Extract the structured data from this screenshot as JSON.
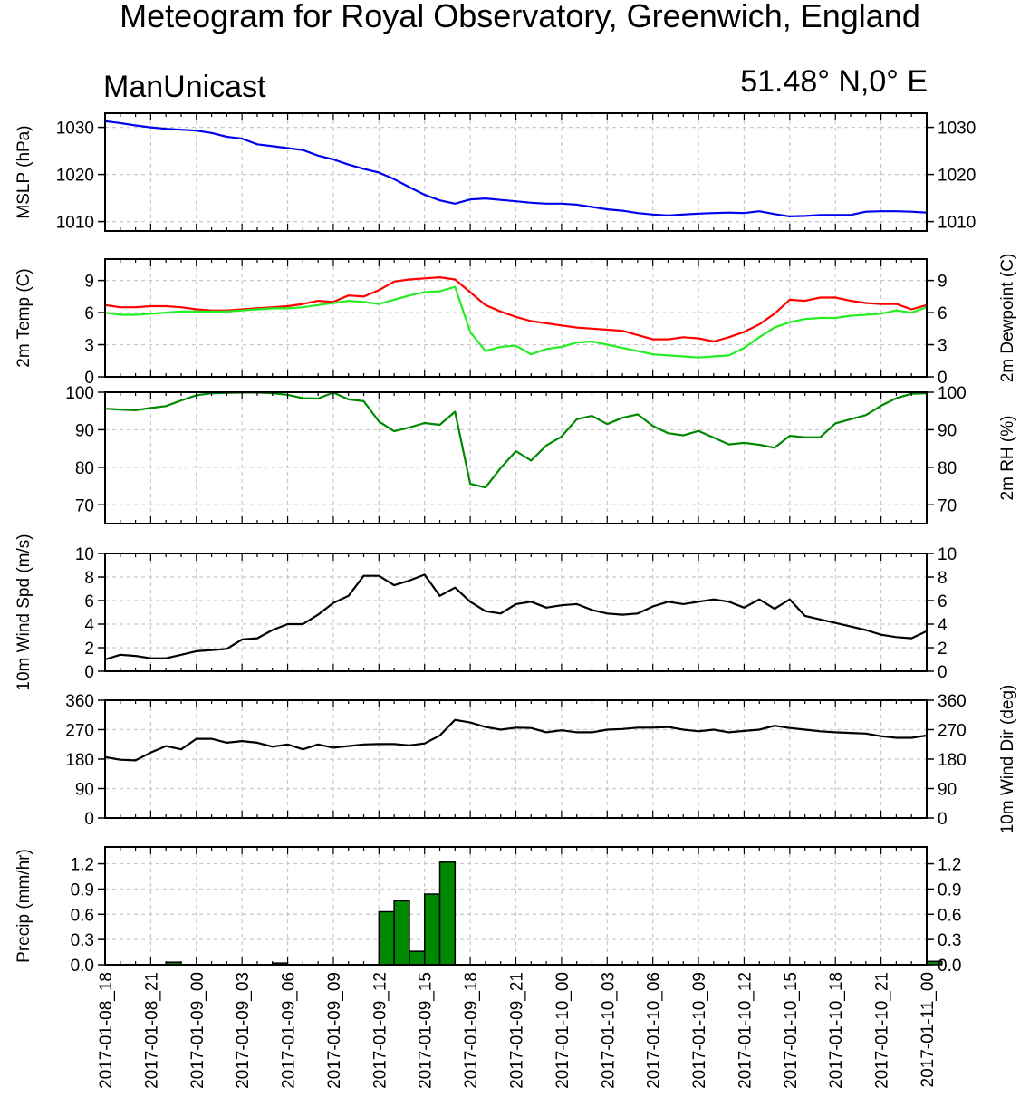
{
  "header": {
    "title": "Meteogram for Royal Observatory, Greenwich, England",
    "model": "ManUnicast",
    "location": "51.48° N,0° E"
  },
  "x_labels": [
    "2017-01-08_18",
    "2017-01-08_21",
    "2017-01-09_00",
    "2017-01-09_03",
    "2017-01-09_06",
    "2017-01-09_09",
    "2017-01-09_12",
    "2017-01-09_15",
    "2017-01-09_18",
    "2017-01-09_21",
    "2017-01-10_00",
    "2017-01-10_03",
    "2017-01-10_06",
    "2017-01-10_09",
    "2017-01-10_12",
    "2017-01-10_15",
    "2017-01-10_18",
    "2017-01-10_21",
    "2017-01-11_00"
  ],
  "chart_data": [
    {
      "type": "line",
      "panel": "mslp",
      "ylabel_left": "MSLP (hPa)",
      "ylim": [
        1008,
        1033
      ],
      "yticks": [
        1010,
        1020,
        1030
      ],
      "series": [
        {
          "color": "#0000ee",
          "x": [
            0,
            1,
            2,
            3,
            4,
            5,
            6,
            7,
            8,
            9,
            10,
            11,
            12,
            13,
            14,
            15,
            16,
            17,
            18,
            19,
            20,
            21,
            22,
            23,
            24,
            25,
            26,
            27,
            28,
            29,
            30,
            31,
            32,
            33,
            34,
            35,
            36,
            37,
            38,
            39,
            40,
            41,
            42,
            43,
            44,
            45,
            46,
            47,
            48,
            49,
            50,
            51,
            52,
            53,
            54
          ],
          "values": [
            1031.3,
            1030.9,
            1030.4,
            1030.0,
            1029.7,
            1029.5,
            1029.3,
            1028.8,
            1028.0,
            1027.6,
            1026.4,
            1026.0,
            1025.6,
            1025.2,
            1024.0,
            1023.2,
            1022.1,
            1021.2,
            1020.4,
            1019.0,
            1017.3,
            1015.7,
            1014.5,
            1013.8,
            1014.7,
            1014.9,
            1014.6,
            1014.3,
            1014.0,
            1013.8,
            1013.8,
            1013.6,
            1013.1,
            1012.6,
            1012.3,
            1011.8,
            1011.5,
            1011.3,
            1011.5,
            1011.7,
            1011.8,
            1011.9,
            1011.8,
            1012.2,
            1011.6,
            1011.1,
            1011.2,
            1011.4,
            1011.4,
            1011.4,
            1012.1,
            1012.2,
            1012.2,
            1012.1,
            1011.9
          ]
        }
      ]
    },
    {
      "type": "line",
      "panel": "temperature",
      "ylabel_left": "2m Temp (C)",
      "ylabel_right": "2m Dewpoint (C)",
      "ylim": [
        0,
        11
      ],
      "yticks": [
        0,
        3,
        6,
        9
      ],
      "series": [
        {
          "color": "#ff0000",
          "x": [
            0,
            1,
            2,
            3,
            4,
            5,
            6,
            7,
            8,
            9,
            10,
            11,
            12,
            13,
            14,
            15,
            16,
            17,
            18,
            19,
            20,
            21,
            22,
            23,
            24,
            25,
            26,
            27,
            28,
            29,
            30,
            31,
            32,
            33,
            34,
            35,
            36,
            37,
            38,
            39,
            40,
            41,
            42,
            43,
            44,
            45,
            46,
            47,
            48,
            49,
            50,
            51,
            52,
            53,
            54
          ],
          "values": [
            6.7,
            6.5,
            6.5,
            6.6,
            6.6,
            6.5,
            6.3,
            6.2,
            6.2,
            6.3,
            6.4,
            6.5,
            6.6,
            6.8,
            7.1,
            7.0,
            7.6,
            7.5,
            8.1,
            8.9,
            9.1,
            9.2,
            9.3,
            9.1,
            7.9,
            6.7,
            6.1,
            5.6,
            5.2,
            5.0,
            4.8,
            4.6,
            4.5,
            4.4,
            4.3,
            3.9,
            3.5,
            3.5,
            3.7,
            3.6,
            3.3,
            3.7,
            4.2,
            4.9,
            5.9,
            7.2,
            7.1,
            7.4,
            7.4,
            7.1,
            6.9,
            6.8,
            6.8,
            6.3,
            6.7
          ]
        },
        {
          "color": "#22ee22",
          "x": [
            0,
            1,
            2,
            3,
            4,
            5,
            6,
            7,
            8,
            9,
            10,
            11,
            12,
            13,
            14,
            15,
            16,
            17,
            18,
            19,
            20,
            21,
            22,
            23,
            24,
            25,
            26,
            27,
            28,
            29,
            30,
            31,
            32,
            33,
            34,
            35,
            36,
            37,
            38,
            39,
            40,
            41,
            42,
            43,
            44,
            45,
            46,
            47,
            48,
            49,
            50,
            51,
            52,
            53,
            54
          ],
          "values": [
            6.0,
            5.8,
            5.8,
            5.9,
            6.0,
            6.1,
            6.1,
            6.1,
            6.1,
            6.2,
            6.3,
            6.4,
            6.4,
            6.5,
            6.7,
            6.9,
            7.1,
            7.0,
            6.8,
            7.2,
            7.6,
            7.9,
            8.0,
            8.4,
            4.2,
            2.4,
            2.8,
            2.9,
            2.1,
            2.6,
            2.8,
            3.2,
            3.3,
            3.0,
            2.7,
            2.4,
            2.1,
            2.0,
            1.9,
            1.8,
            1.9,
            2.0,
            2.7,
            3.7,
            4.6,
            5.1,
            5.4,
            5.5,
            5.5,
            5.7,
            5.8,
            5.9,
            6.2,
            6.0,
            6.5
          ]
        }
      ]
    },
    {
      "type": "line",
      "panel": "rh",
      "ylabel_right": "2m RH (%)",
      "ylim": [
        65,
        100
      ],
      "yticks": [
        70,
        80,
        90,
        100
      ],
      "series": [
        {
          "color": "#008800",
          "x": [
            0,
            1,
            2,
            3,
            4,
            5,
            6,
            7,
            8,
            9,
            10,
            11,
            12,
            13,
            14,
            15,
            16,
            17,
            18,
            19,
            20,
            21,
            22,
            23,
            24,
            25,
            26,
            27,
            28,
            29,
            30,
            31,
            32,
            33,
            34,
            35,
            36,
            37,
            38,
            39,
            40,
            41,
            42,
            43,
            44,
            45,
            46,
            47,
            48,
            49,
            50,
            51,
            52,
            53,
            54
          ],
          "values": [
            95.6,
            95.4,
            95.2,
            95.8,
            96.3,
            97.8,
            99.2,
            99.7,
            99.8,
            99.9,
            99.9,
            99.7,
            99.3,
            98.4,
            98.3,
            99.9,
            98.1,
            97.6,
            92.2,
            89.6,
            90.6,
            91.8,
            91.3,
            94.8,
            75.6,
            74.6,
            79.8,
            84.3,
            81.8,
            85.8,
            88.2,
            92.8,
            93.7,
            91.5,
            93.2,
            94.1,
            91.0,
            89.1,
            88.5,
            89.7,
            87.9,
            86.1,
            86.5,
            86.0,
            85.2,
            88.4,
            88.0,
            88.0,
            91.7,
            92.8,
            93.9,
            96.4,
            98.4,
            99.6,
            99.7
          ]
        }
      ]
    },
    {
      "type": "line",
      "panel": "wind_speed",
      "ylabel_left": "10m Wind Spd (m/s)",
      "ylim": [
        0,
        10
      ],
      "yticks": [
        0,
        2,
        4,
        6,
        8,
        10
      ],
      "series": [
        {
          "color": "#000000",
          "x": [
            0,
            1,
            2,
            3,
            4,
            5,
            6,
            7,
            8,
            9,
            10,
            11,
            12,
            13,
            14,
            15,
            16,
            17,
            18,
            19,
            20,
            21,
            22,
            23,
            24,
            25,
            26,
            27,
            28,
            29,
            30,
            31,
            32,
            33,
            34,
            35,
            36,
            37,
            38,
            39,
            40,
            41,
            42,
            43,
            44,
            45,
            46,
            47,
            48,
            49,
            50,
            51,
            52,
            53,
            54
          ],
          "values": [
            1.0,
            1.4,
            1.3,
            1.1,
            1.1,
            1.4,
            1.7,
            1.8,
            1.9,
            2.7,
            2.8,
            3.5,
            4.0,
            4.0,
            4.8,
            5.8,
            6.4,
            8.1,
            8.1,
            7.3,
            7.7,
            8.2,
            6.4,
            7.1,
            5.9,
            5.1,
            4.9,
            5.7,
            5.9,
            5.4,
            5.6,
            5.7,
            5.2,
            4.9,
            4.8,
            4.9,
            5.5,
            5.9,
            5.7,
            5.9,
            6.1,
            5.9,
            5.4,
            6.1,
            5.3,
            6.1,
            4.7,
            4.4,
            4.1,
            3.8,
            3.5,
            3.1,
            2.9,
            2.8,
            3.4
          ]
        }
      ]
    },
    {
      "type": "line",
      "panel": "wind_dir",
      "ylabel_right": "10m Wind Dir (deg)",
      "ylim": [
        0,
        360
      ],
      "yticks": [
        0,
        90,
        180,
        270,
        360
      ],
      "series": [
        {
          "color": "#000000",
          "x": [
            0,
            1,
            2,
            3,
            4,
            5,
            6,
            7,
            8,
            9,
            10,
            11,
            12,
            13,
            14,
            15,
            16,
            17,
            18,
            19,
            20,
            21,
            22,
            23,
            24,
            25,
            26,
            27,
            28,
            29,
            30,
            31,
            32,
            33,
            34,
            35,
            36,
            37,
            38,
            39,
            40,
            41,
            42,
            43,
            44,
            45,
            46,
            47,
            48,
            49,
            50,
            51,
            52,
            53,
            54
          ],
          "values": [
            186,
            178,
            176,
            200,
            220,
            210,
            242,
            242,
            230,
            235,
            230,
            218,
            225,
            210,
            225,
            215,
            220,
            225,
            226,
            226,
            222,
            228,
            252,
            300,
            292,
            278,
            270,
            276,
            275,
            262,
            268,
            262,
            262,
            270,
            272,
            276,
            276,
            278,
            270,
            265,
            270,
            262,
            266,
            270,
            282,
            275,
            270,
            265,
            262,
            260,
            258,
            250,
            245,
            245,
            252
          ]
        }
      ]
    },
    {
      "type": "bar",
      "panel": "precip",
      "ylabel_left": "Precip (mm/hr)",
      "ylim": [
        0,
        1.4
      ],
      "yticks": [
        0.0,
        0.3,
        0.6,
        0.9,
        1.2
      ],
      "color": "#008800",
      "x": [
        4,
        11,
        18,
        19,
        20,
        21,
        22,
        54
      ],
      "values": [
        0.03,
        0.02,
        0.63,
        0.76,
        0.16,
        0.84,
        1.22,
        0.04
      ]
    }
  ]
}
